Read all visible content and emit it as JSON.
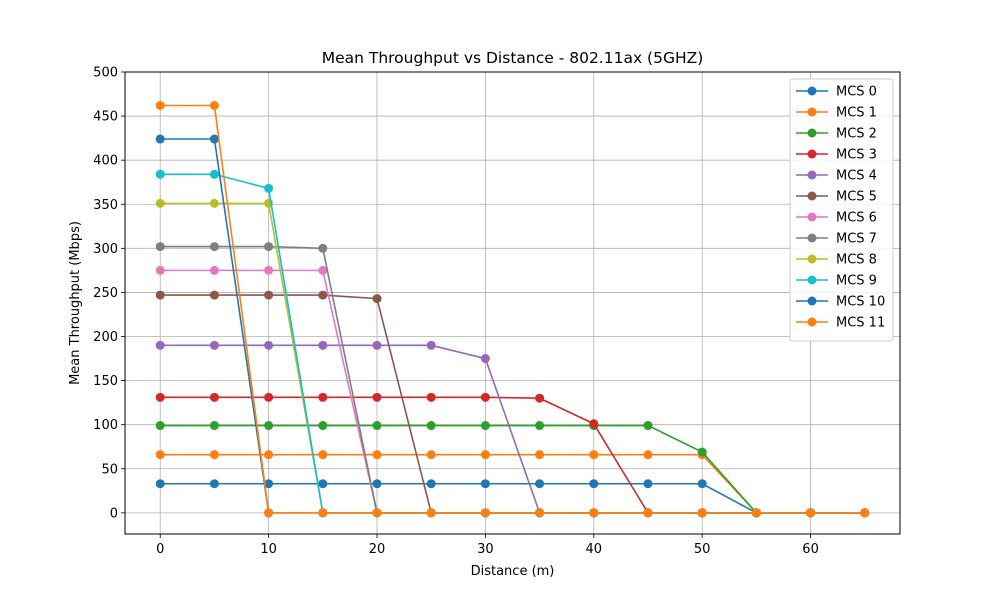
{
  "chart_data": {
    "type": "line",
    "title": "Mean Throughput vs Distance - 802.11ax (5GHZ)",
    "xlabel": "Distance (m)",
    "ylabel": "Mean Throughput (Mbps)",
    "xlim": [
      -3.25,
      68.25
    ],
    "ylim": [
      -24,
      500
    ],
    "xticks": [
      0,
      10,
      20,
      30,
      40,
      50,
      60
    ],
    "yticks": [
      0,
      50,
      100,
      150,
      200,
      250,
      300,
      350,
      400,
      450,
      500
    ],
    "grid": true,
    "legend_position": "top-right",
    "x": [
      0,
      5,
      10,
      15,
      20,
      25,
      30,
      35,
      40,
      45,
      50,
      55,
      60,
      65
    ],
    "series": [
      {
        "name": "MCS 0",
        "color": "#1f77b4",
        "values": [
          33,
          33,
          33,
          33,
          33,
          33,
          33,
          33,
          33,
          33,
          33,
          0,
          0,
          0
        ]
      },
      {
        "name": "MCS 1",
        "color": "#ff7f0e",
        "values": [
          66,
          66,
          66,
          66,
          66,
          66,
          66,
          66,
          66,
          66,
          66,
          0,
          0,
          0
        ]
      },
      {
        "name": "MCS 2",
        "color": "#2ca02c",
        "values": [
          99,
          99,
          99,
          99,
          99,
          99,
          99,
          99,
          99,
          99,
          69,
          0,
          0,
          0
        ]
      },
      {
        "name": "MCS 3",
        "color": "#d62728",
        "values": [
          131,
          131,
          131,
          131,
          131,
          131,
          131,
          130,
          101,
          0,
          0,
          0,
          0,
          0
        ]
      },
      {
        "name": "MCS 4",
        "color": "#9467bd",
        "values": [
          190,
          190,
          190,
          190,
          190,
          190,
          175,
          0,
          0,
          0,
          0,
          0,
          0,
          0
        ]
      },
      {
        "name": "MCS 5",
        "color": "#8c564b",
        "values": [
          247,
          247,
          247,
          247,
          243,
          0,
          0,
          0,
          0,
          0,
          0,
          0,
          0,
          0
        ]
      },
      {
        "name": "MCS 6",
        "color": "#e377c2",
        "values": [
          275,
          275,
          275,
          275,
          0,
          0,
          0,
          0,
          0,
          0,
          0,
          0,
          0,
          0
        ]
      },
      {
        "name": "MCS 7",
        "color": "#7f7f7f",
        "values": [
          302,
          302,
          302,
          300,
          0,
          0,
          0,
          0,
          0,
          0,
          0,
          0,
          0,
          0
        ]
      },
      {
        "name": "MCS 8",
        "color": "#bcbd22",
        "values": [
          351,
          351,
          351,
          0,
          0,
          0,
          0,
          0,
          0,
          0,
          0,
          0,
          0,
          0
        ]
      },
      {
        "name": "MCS 9",
        "color": "#17becf",
        "values": [
          384,
          384,
          368,
          0,
          0,
          0,
          0,
          0,
          0,
          0,
          0,
          0,
          0,
          0
        ]
      },
      {
        "name": "MCS 10",
        "color": "#1f77b4",
        "values": [
          424,
          424,
          0,
          0,
          0,
          0,
          0,
          0,
          0,
          0,
          0,
          0,
          0,
          0
        ]
      },
      {
        "name": "MCS 11",
        "color": "#ff7f0e",
        "values": [
          462,
          462,
          0,
          0,
          0,
          0,
          0,
          0,
          0,
          0,
          0,
          0,
          0,
          0
        ]
      }
    ]
  }
}
